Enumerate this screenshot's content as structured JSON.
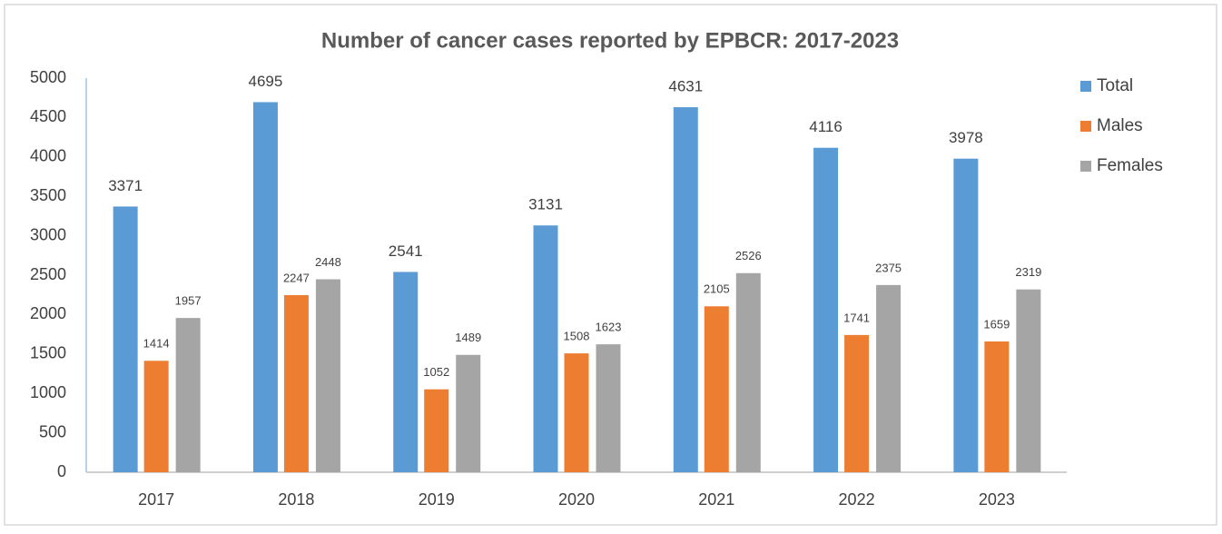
{
  "chart_data": {
    "type": "bar",
    "title": "Number of cancer cases reported by EPBCR: 2017-2023",
    "categories": [
      "2017",
      "2018",
      "2019",
      "2020",
      "2021",
      "2022",
      "2023"
    ],
    "series": [
      {
        "name": "Total",
        "color": "#5b9bd5",
        "values": [
          3371,
          4695,
          2541,
          3131,
          4631,
          4116,
          3978
        ]
      },
      {
        "name": "Males",
        "color": "#ed7d31",
        "values": [
          1414,
          2247,
          1052,
          1508,
          2105,
          1741,
          1659
        ]
      },
      {
        "name": "Females",
        "color": "#a5a5a5",
        "values": [
          1957,
          2448,
          1489,
          1623,
          2526,
          2375,
          2319
        ]
      }
    ],
    "ylim": [
      0,
      5000
    ],
    "yticks": [
      0,
      500,
      1000,
      1500,
      2000,
      2500,
      3000,
      3500,
      4000,
      4500,
      5000
    ],
    "grid": false,
    "legend": "right"
  }
}
